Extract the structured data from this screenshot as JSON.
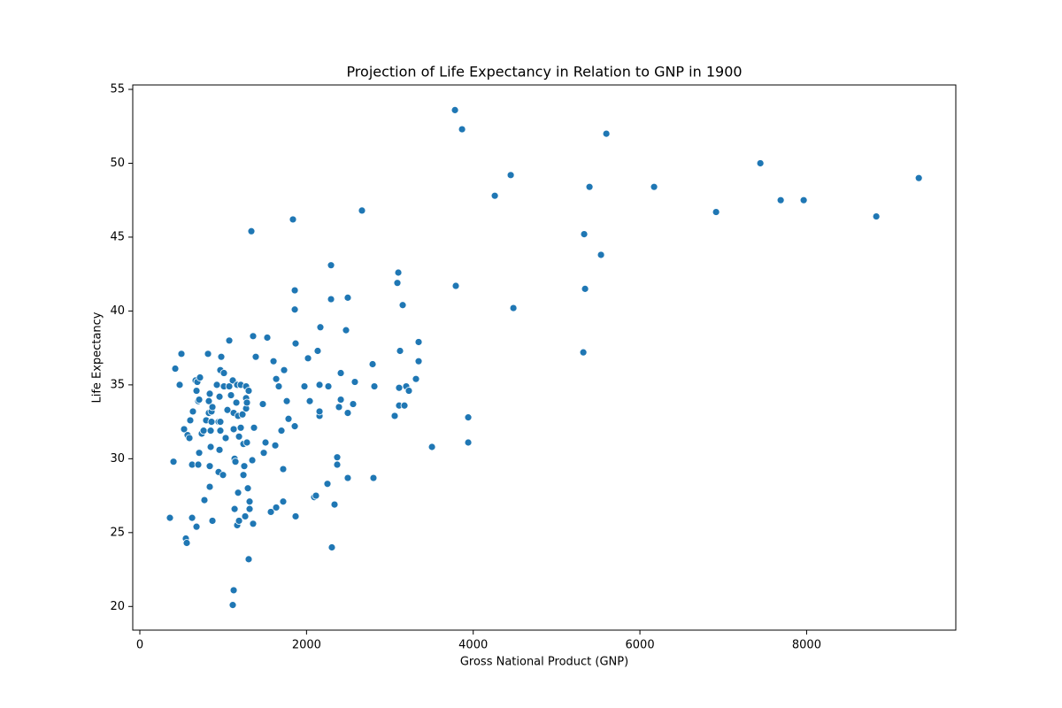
{
  "chart_data": {
    "type": "scatter",
    "title": "Projection of Life Expectancy in Relation to GNP in 1900",
    "x_label": "Gross National Product (GNP)",
    "y_label": "Life Expectancy",
    "color": "#1f77b4",
    "xlim": [
      -85,
      9790
    ],
    "xticks": [
      0,
      2000,
      4000,
      6000,
      8000
    ],
    "ylim": [
      18.4,
      55.3
    ],
    "yticks": [
      20,
      25,
      30,
      35,
      40,
      45,
      50,
      55
    ],
    "grid": false,
    "x": [
      361,
      404,
      425,
      478,
      499,
      531,
      552,
      563,
      573,
      595,
      605,
      627,
      637,
      627,
      680,
      669,
      680,
      690,
      701,
      712,
      722,
      712,
      701,
      743,
      765,
      775,
      796,
      818,
      828,
      828,
      839,
      839,
      839,
      850,
      850,
      860,
      871,
      860,
      871,
      924,
      945,
      945,
      956,
      966,
      956,
      966,
      977,
      966,
      998,
      1009,
      1009,
      1030,
      1051,
      1073,
      1073,
      1094,
      1115,
      1126,
      1126,
      1137,
      1137,
      1126,
      1115,
      1147,
      1158,
      1168,
      1168,
      1179,
      1190,
      1179,
      1190,
      1211,
      1211,
      1232,
      1243,
      1243,
      1253,
      1264,
      1275,
      1275,
      1285,
      1275,
      1285,
      1296,
      1306,
      1317,
      1317,
      1306,
      1338,
      1349,
      1359,
      1359,
      1370,
      1391,
      1476,
      1487,
      1508,
      1529,
      1572,
      1604,
      1625,
      1636,
      1636,
      1667,
      1699,
      1720,
      1720,
      1731,
      1763,
      1784,
      1837,
      1859,
      1859,
      1859,
      1869,
      1869,
      1975,
      2018,
      2039,
      2092,
      2113,
      2134,
      2156,
      2156,
      2156,
      2166,
      2251,
      2262,
      2294,
      2294,
      2304,
      2336,
      2368,
      2368,
      2389,
      2411,
      2411,
      2474,
      2495,
      2495,
      2495,
      2559,
      2580,
      2665,
      2793,
      2803,
      2814,
      3058,
      3090,
      3101,
      3111,
      3111,
      3122,
      3154,
      3175,
      3196,
      3228,
      3313,
      3345,
      3345,
      3505,
      3781,
      3791,
      3866,
      3940,
      3940,
      4259,
      4450,
      4482,
      5321,
      5331,
      5342,
      5395,
      5533,
      5597,
      6170,
      6914,
      7445,
      7689,
      7965,
      8836,
      9346
    ],
    "values": [
      26.0,
      29.8,
      36.1,
      35.0,
      37.1,
      32.0,
      24.6,
      24.3,
      31.6,
      31.4,
      32.6,
      29.6,
      33.2,
      26.0,
      25.4,
      35.3,
      34.6,
      35.2,
      33.9,
      34.0,
      35.5,
      30.4,
      29.6,
      31.7,
      31.9,
      27.2,
      32.6,
      37.1,
      33.1,
      33.9,
      34.4,
      29.5,
      28.1,
      31.9,
      30.8,
      33.2,
      33.5,
      32.5,
      25.8,
      35.0,
      32.5,
      29.1,
      34.2,
      31.9,
      30.6,
      32.5,
      36.9,
      36.0,
      28.9,
      35.8,
      34.9,
      31.4,
      33.3,
      34.9,
      38.0,
      34.3,
      35.3,
      33.1,
      32.0,
      30.0,
      26.6,
      21.1,
      20.1,
      29.8,
      33.8,
      35.0,
      25.5,
      32.9,
      31.5,
      27.7,
      25.8,
      32.1,
      35.0,
      33.0,
      31.0,
      28.9,
      29.5,
      26.1,
      34.1,
      33.4,
      33.8,
      34.9,
      31.1,
      28.0,
      34.6,
      27.1,
      26.6,
      23.2,
      45.4,
      29.9,
      38.3,
      25.6,
      32.1,
      36.9,
      33.7,
      30.4,
      31.1,
      38.2,
      26.4,
      36.6,
      30.9,
      35.4,
      26.7,
      34.9,
      31.9,
      29.3,
      27.1,
      36.0,
      33.9,
      32.7,
      46.2,
      41.4,
      40.1,
      32.2,
      37.8,
      26.1,
      34.9,
      36.8,
      33.9,
      27.4,
      27.5,
      37.3,
      32.9,
      35.0,
      33.2,
      38.9,
      28.3,
      34.9,
      43.1,
      40.8,
      24.0,
      26.9,
      30.1,
      29.6,
      33.5,
      35.8,
      34.0,
      38.7,
      40.9,
      33.1,
      28.7,
      33.7,
      35.2,
      46.8,
      36.4,
      28.7,
      34.9,
      32.9,
      41.9,
      42.6,
      34.8,
      33.6,
      37.3,
      40.4,
      33.6,
      34.9,
      34.6,
      35.4,
      37.9,
      36.6,
      30.8,
      53.6,
      41.7,
      52.3,
      32.8,
      31.1,
      47.8,
      49.2,
      40.2,
      37.2,
      45.2,
      41.5,
      48.4,
      43.8,
      52.0,
      48.4,
      46.7,
      50.0,
      47.5,
      47.5,
      46.4,
      49.0
    ]
  }
}
